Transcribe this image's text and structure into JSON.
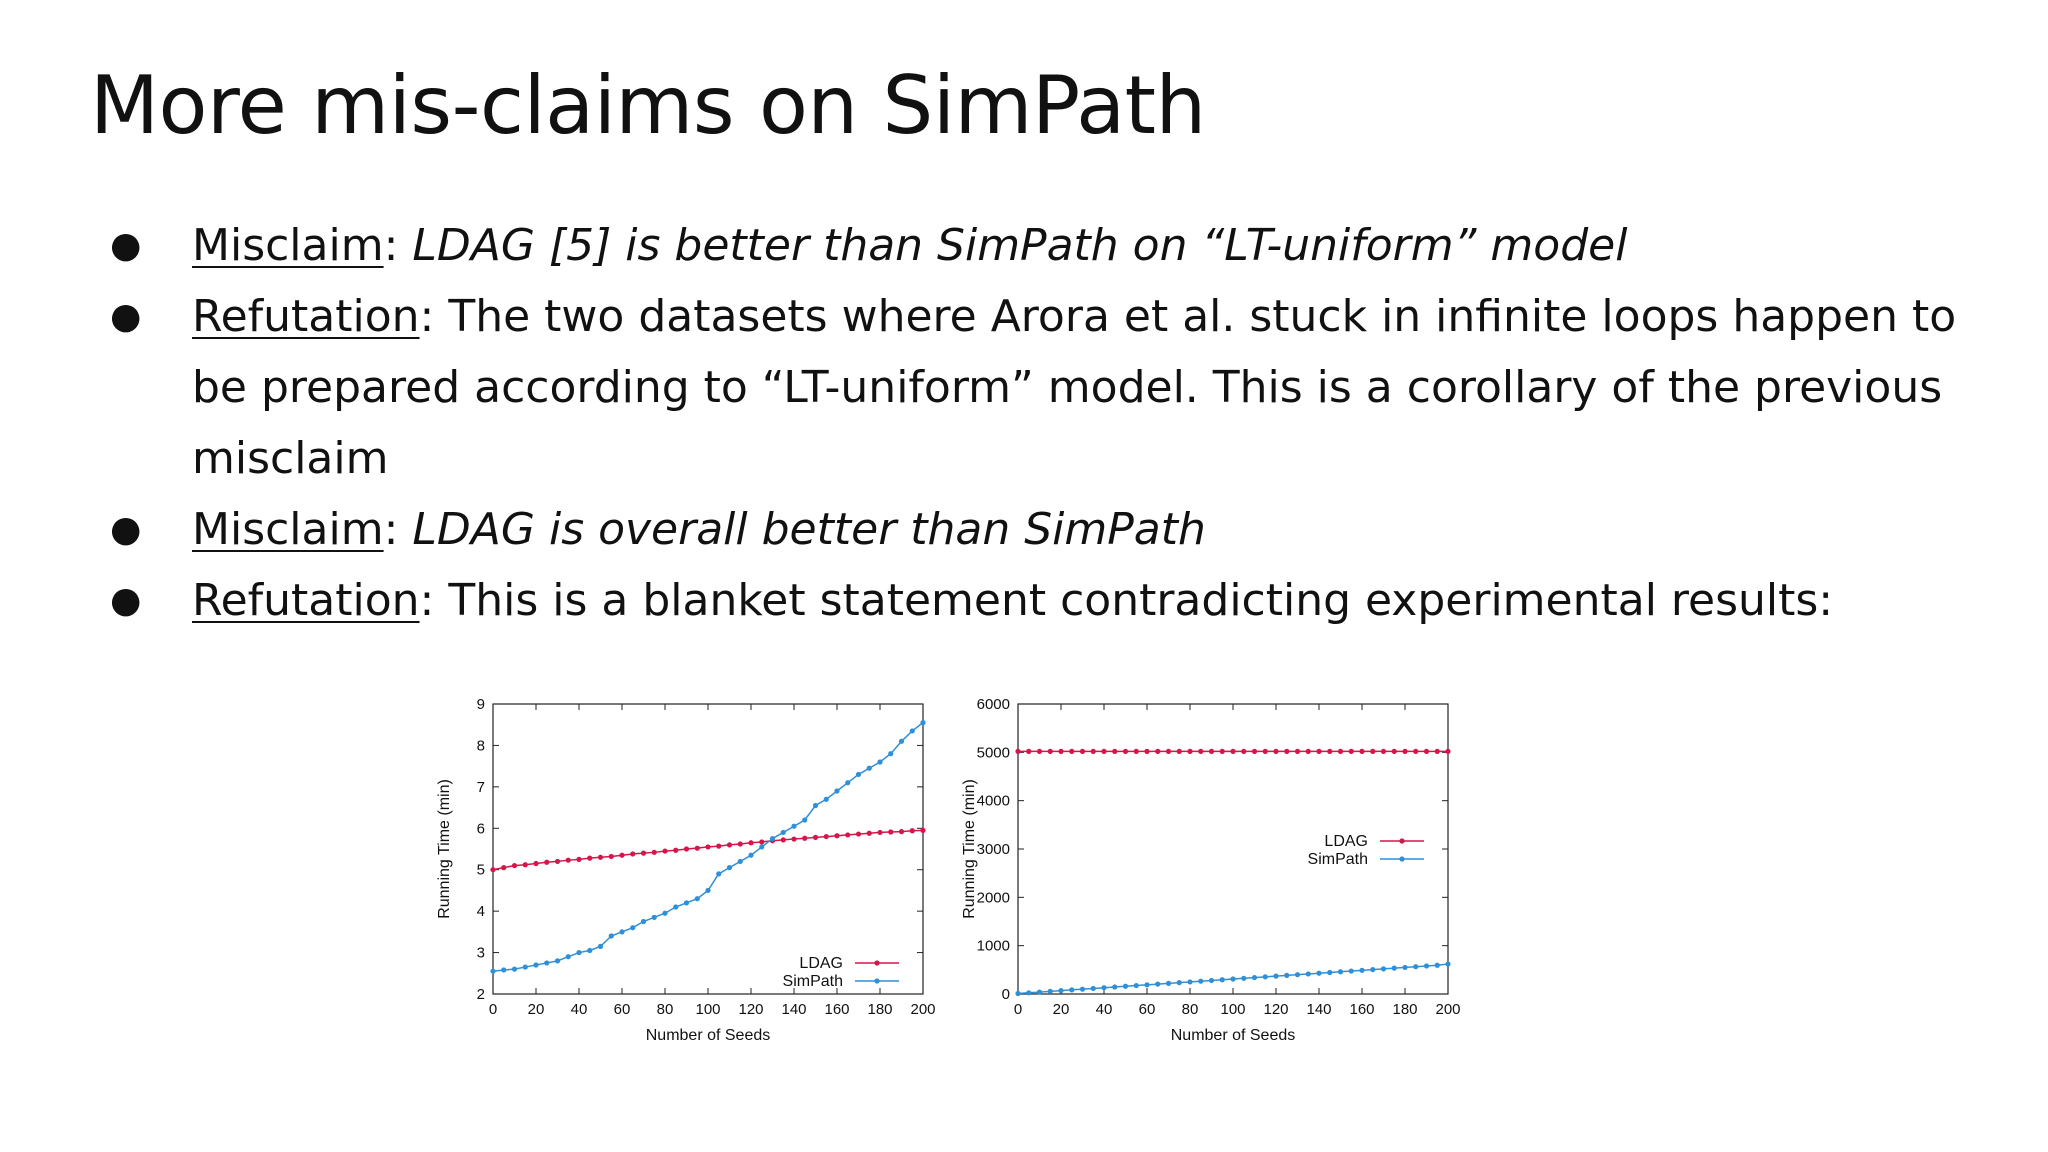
{
  "slide": {
    "title": "More mis-claims on SimPath",
    "bullets": [
      {
        "label": "Misclaim",
        "sep": ": ",
        "text": "LDAG [5] is better than SimPath on “LT-uniform” model",
        "italic": true
      },
      {
        "label": "Refutation",
        "sep": ": ",
        "text": "The two datasets where Arora et al. stuck in infinite loops happen to be prepared according to “LT-uniform” model. This is a corollary of the previous misclaim",
        "italic": false
      },
      {
        "label": "Misclaim",
        "sep": ": ",
        "text": "LDAG is overall better than SimPath",
        "italic": true
      },
      {
        "label": "Refutation",
        "sep": ": ",
        "text": "This is a blanket statement contradicting experimental results:",
        "italic": false
      }
    ]
  },
  "colors": {
    "ldag": "#d6154a",
    "simpath": "#2f8fd8"
  },
  "chart_data": [
    {
      "type": "line",
      "xlabel": "Number of Seeds",
      "ylabel": "Running Time (min)",
      "xlim": [
        0,
        200
      ],
      "ylim": [
        2,
        9
      ],
      "xticks": [
        0,
        20,
        40,
        60,
        80,
        100,
        120,
        140,
        160,
        180,
        200
      ],
      "yticks": [
        2,
        3,
        4,
        5,
        6,
        7,
        8,
        9
      ],
      "legend": "bottom-right",
      "grid": false,
      "x": [
        0,
        5,
        10,
        15,
        20,
        25,
        30,
        35,
        40,
        45,
        50,
        55,
        60,
        65,
        70,
        75,
        80,
        85,
        90,
        95,
        100,
        105,
        110,
        115,
        120,
        125,
        130,
        135,
        140,
        145,
        150,
        155,
        160,
        165,
        170,
        175,
        180,
        185,
        190,
        195,
        200
      ],
      "series": [
        {
          "name": "LDAG",
          "values": [
            5.0,
            5.05,
            5.1,
            5.12,
            5.15,
            5.18,
            5.2,
            5.23,
            5.25,
            5.28,
            5.3,
            5.32,
            5.35,
            5.38,
            5.4,
            5.42,
            5.45,
            5.47,
            5.5,
            5.52,
            5.55,
            5.57,
            5.6,
            5.62,
            5.65,
            5.67,
            5.7,
            5.72,
            5.74,
            5.76,
            5.78,
            5.8,
            5.82,
            5.84,
            5.86,
            5.88,
            5.9,
            5.91,
            5.92,
            5.94,
            5.95
          ]
        },
        {
          "name": "SimPath",
          "values": [
            2.55,
            2.58,
            2.6,
            2.65,
            2.7,
            2.75,
            2.8,
            2.9,
            3.0,
            3.05,
            3.15,
            3.4,
            3.5,
            3.6,
            3.75,
            3.85,
            3.95,
            4.1,
            4.2,
            4.3,
            4.5,
            4.9,
            5.05,
            5.2,
            5.35,
            5.55,
            5.75,
            5.9,
            6.05,
            6.2,
            6.55,
            6.7,
            6.9,
            7.1,
            7.3,
            7.45,
            7.6,
            7.8,
            8.1,
            8.35,
            8.55
          ]
        }
      ]
    },
    {
      "type": "line",
      "xlabel": "Number of Seeds",
      "ylabel": "Running Time (min)",
      "xlim": [
        0,
        200
      ],
      "ylim": [
        0,
        6000
      ],
      "xticks": [
        0,
        20,
        40,
        60,
        80,
        100,
        120,
        140,
        160,
        180,
        200
      ],
      "yticks": [
        0,
        1000,
        2000,
        3000,
        4000,
        5000,
        6000
      ],
      "legend": "center-right",
      "grid": false,
      "x": [
        0,
        5,
        10,
        15,
        20,
        25,
        30,
        35,
        40,
        45,
        50,
        55,
        60,
        65,
        70,
        75,
        80,
        85,
        90,
        95,
        100,
        105,
        110,
        115,
        120,
        125,
        130,
        135,
        140,
        145,
        150,
        155,
        160,
        165,
        170,
        175,
        180,
        185,
        190,
        195,
        200
      ],
      "series": [
        {
          "name": "LDAG",
          "values": [
            5020,
            5020,
            5020,
            5020,
            5020,
            5020,
            5020,
            5020,
            5020,
            5020,
            5020,
            5020,
            5020,
            5020,
            5020,
            5020,
            5020,
            5020,
            5020,
            5020,
            5020,
            5020,
            5020,
            5020,
            5020,
            5020,
            5020,
            5020,
            5020,
            5020,
            5020,
            5020,
            5020,
            5020,
            5020,
            5020,
            5020,
            5020,
            5020,
            5020,
            5020
          ]
        },
        {
          "name": "SimPath",
          "values": [
            10,
            25,
            40,
            55,
            70,
            85,
            100,
            115,
            130,
            145,
            160,
            175,
            190,
            205,
            220,
            235,
            250,
            265,
            280,
            295,
            310,
            325,
            340,
            355,
            370,
            385,
            400,
            415,
            430,
            445,
            460,
            475,
            490,
            505,
            520,
            535,
            550,
            565,
            580,
            595,
            620
          ]
        }
      ]
    }
  ]
}
